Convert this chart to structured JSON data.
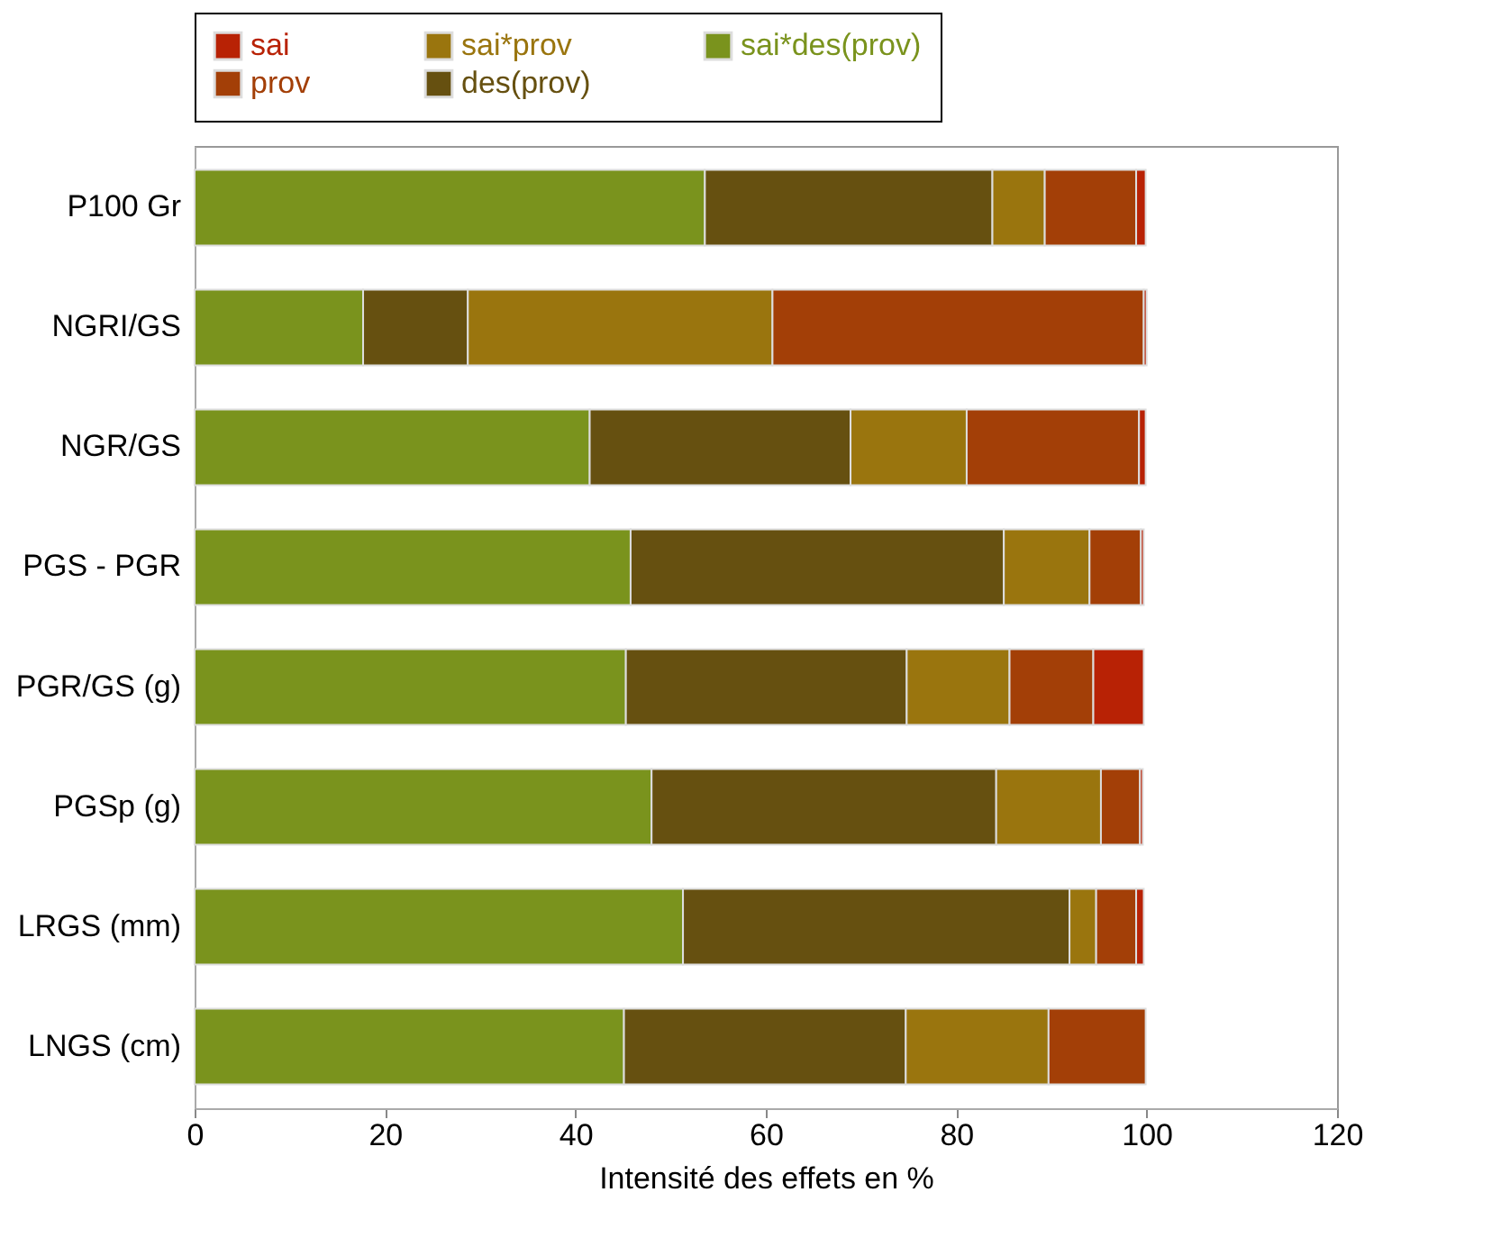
{
  "chart_data": {
    "type": "bar",
    "orientation": "horizontal",
    "stacked": true,
    "xlabel": "Intensité des effets en %",
    "categories": [
      "P100 Gr",
      "NGRI/GS",
      "NGR/GS",
      "PGS - PGR",
      "PGR/GS (g)",
      "PGSp (g)",
      "LRGS (mm)",
      "LNGS (cm)"
    ],
    "xlim": [
      0,
      120
    ],
    "xticks": [
      0,
      20,
      40,
      60,
      80,
      100,
      120
    ],
    "legend": "top",
    "grid": false,
    "series": [
      {
        "name": "sai*des(prov)",
        "color": "#7a931d",
        "values": [
          53.6,
          17.7,
          41.5,
          45.8,
          45.3,
          48,
          51.3,
          45.1
        ]
      },
      {
        "name": "des(prov)",
        "color": "#665010",
        "values": [
          30.2,
          11,
          27.4,
          39.2,
          29.5,
          36.2,
          40.6,
          29.6
        ]
      },
      {
        "name": "sai*prov",
        "color": "#9a750e",
        "values": [
          5.5,
          32,
          12.2,
          9,
          10.8,
          11,
          2.8,
          15
        ]
      },
      {
        "name": "prov",
        "color": "#a33f07",
        "values": [
          9.6,
          39,
          18.1,
          5.4,
          8.8,
          4.1,
          4.2,
          10.2
        ]
      },
      {
        "name": "sai",
        "color": "#b82205",
        "values": [
          1,
          0.3,
          0.7,
          0.3,
          5.3,
          0.3,
          0.8,
          null
        ]
      }
    ]
  }
}
